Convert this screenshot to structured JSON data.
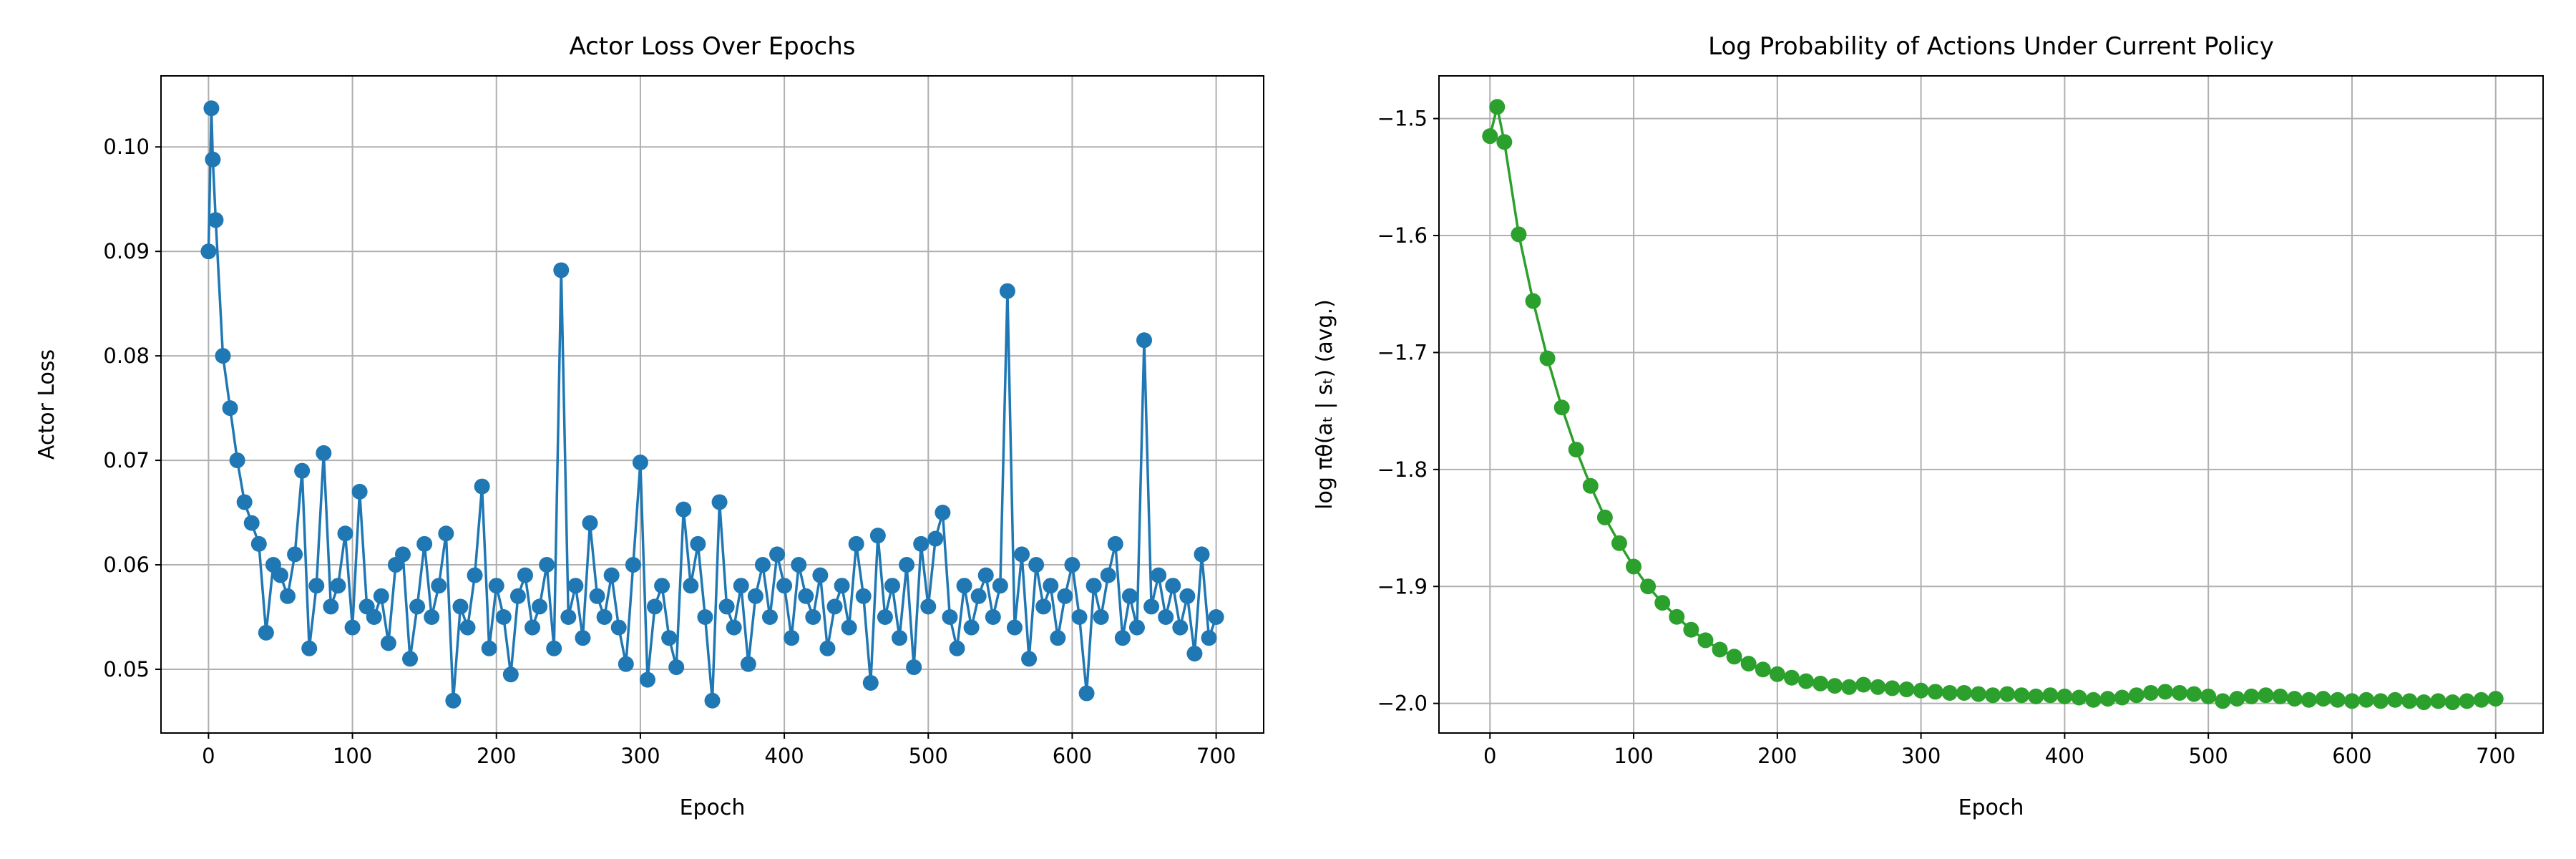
{
  "chart_data": [
    {
      "type": "line",
      "title": "Actor Loss Over Epochs",
      "xlabel": "Epoch",
      "ylabel": "Actor Loss",
      "color": "#1f77b4",
      "marker": true,
      "grid": true,
      "xlim": [
        -33,
        733
      ],
      "ylim": [
        0.0439,
        0.1068
      ],
      "xticks": [
        0,
        100,
        200,
        300,
        400,
        500,
        600,
        700
      ],
      "yticks": [
        0.05,
        0.06,
        0.07,
        0.08,
        0.09,
        {
          "value": 0.1,
          "label": "0.10"
        }
      ],
      "x": [
        0,
        2,
        3,
        5,
        10,
        15,
        20,
        25,
        30,
        35,
        40,
        45,
        50,
        55,
        60,
        65,
        70,
        75,
        80,
        85,
        90,
        95,
        100,
        105,
        110,
        115,
        120,
        125,
        130,
        135,
        140,
        145,
        150,
        155,
        160,
        165,
        170,
        175,
        180,
        185,
        190,
        195,
        200,
        205,
        210,
        215,
        220,
        225,
        230,
        235,
        240,
        245,
        250,
        255,
        260,
        265,
        270,
        275,
        280,
        285,
        290,
        295,
        300,
        305,
        310,
        315,
        320,
        325,
        330,
        335,
        340,
        345,
        350,
        355,
        360,
        365,
        370,
        375,
        380,
        385,
        390,
        395,
        400,
        405,
        410,
        415,
        420,
        425,
        430,
        435,
        440,
        445,
        450,
        455,
        460,
        465,
        470,
        475,
        480,
        485,
        490,
        495,
        500,
        505,
        510,
        515,
        520,
        525,
        530,
        535,
        540,
        545,
        550,
        555,
        560,
        565,
        570,
        575,
        580,
        585,
        590,
        595,
        600,
        605,
        610,
        615,
        620,
        625,
        630,
        635,
        640,
        645,
        650,
        655,
        660,
        665,
        670,
        675,
        680,
        685,
        690,
        695,
        700
      ],
      "values": [
        0.09,
        0.1037,
        0.0988,
        0.093,
        0.08,
        0.075,
        0.07,
        0.066,
        0.064,
        0.062,
        0.0535,
        0.06,
        0.059,
        0.057,
        0.061,
        0.069,
        0.052,
        0.058,
        0.0707,
        0.056,
        0.058,
        0.063,
        0.054,
        0.067,
        0.056,
        0.055,
        0.057,
        0.0525,
        0.06,
        0.061,
        0.051,
        0.056,
        0.062,
        0.055,
        0.058,
        0.063,
        0.047,
        0.056,
        0.054,
        0.059,
        0.0675,
        0.052,
        0.058,
        0.055,
        0.0495,
        0.057,
        0.059,
        0.054,
        0.056,
        0.06,
        0.052,
        0.0882,
        0.055,
        0.058,
        0.053,
        0.064,
        0.057,
        0.055,
        0.059,
        0.054,
        0.0505,
        0.06,
        0.0698,
        0.049,
        0.056,
        0.058,
        0.053,
        0.0502,
        0.0653,
        0.058,
        0.062,
        0.055,
        0.047,
        0.066,
        0.056,
        0.054,
        0.058,
        0.0505,
        0.057,
        0.06,
        0.055,
        0.061,
        0.058,
        0.053,
        0.06,
        0.057,
        0.055,
        0.059,
        0.052,
        0.056,
        0.058,
        0.054,
        0.062,
        0.057,
        0.0487,
        0.0628,
        0.055,
        0.058,
        0.053,
        0.06,
        0.0502,
        0.062,
        0.056,
        0.0625,
        0.065,
        0.055,
        0.052,
        0.058,
        0.054,
        0.057,
        0.059,
        0.055,
        0.058,
        0.0862,
        0.054,
        0.061,
        0.051,
        0.06,
        0.056,
        0.058,
        0.053,
        0.057,
        0.06,
        0.055,
        0.0477,
        0.058,
        0.055,
        0.059,
        0.062,
        0.053,
        0.057,
        0.054,
        0.0815,
        0.056,
        0.059,
        0.055,
        0.058,
        0.054,
        0.057,
        0.0515,
        0.061,
        0.053,
        0.055
      ]
    },
    {
      "type": "line",
      "title": "Log Probability of Actions Under Current Policy",
      "xlabel": "Epoch",
      "ylabel": "log πθ(aₜ | sₜ) (avg.)",
      "color": "#2ca02c",
      "marker": true,
      "grid": true,
      "xlim": [
        -35.5,
        733
      ],
      "ylim": [
        -2.0253,
        -1.4635
      ],
      "xticks": [
        0,
        100,
        200,
        300,
        400,
        500,
        600,
        700
      ],
      "yticks": [
        {
          "value": -2.0,
          "label": "−2.0"
        },
        {
          "value": -1.9,
          "label": "−1.9"
        },
        {
          "value": -1.8,
          "label": "−1.8"
        },
        {
          "value": -1.7,
          "label": "−1.7"
        },
        {
          "value": -1.6,
          "label": "−1.6"
        },
        {
          "value": -1.5,
          "label": "−1.5"
        }
      ],
      "x": [
        0,
        5,
        10,
        20,
        30,
        40,
        50,
        60,
        70,
        80,
        90,
        100,
        110,
        120,
        130,
        140,
        150,
        160,
        170,
        180,
        190,
        200,
        210,
        220,
        230,
        240,
        250,
        260,
        270,
        280,
        290,
        300,
        310,
        320,
        330,
        340,
        350,
        360,
        370,
        380,
        390,
        400,
        410,
        420,
        430,
        440,
        450,
        460,
        470,
        480,
        490,
        500,
        510,
        520,
        530,
        540,
        550,
        560,
        570,
        580,
        590,
        600,
        610,
        620,
        630,
        640,
        650,
        660,
        670,
        680,
        690,
        700
      ],
      "values": [
        -1.515,
        -1.49,
        -1.52,
        -1.599,
        -1.656,
        -1.705,
        -1.747,
        -1.783,
        -1.814,
        -1.841,
        -1.863,
        -1.883,
        -1.9,
        -1.914,
        -1.926,
        -1.937,
        -1.946,
        -1.954,
        -1.96,
        -1.966,
        -1.971,
        -1.975,
        -1.978,
        -1.981,
        -1.983,
        -1.985,
        -1.986,
        -1.984,
        -1.986,
        -1.987,
        -1.988,
        -1.989,
        -1.99,
        -1.991,
        -1.991,
        -1.992,
        -1.993,
        -1.992,
        -1.993,
        -1.994,
        -1.993,
        -1.994,
        -1.995,
        -1.997,
        -1.996,
        -1.995,
        -1.993,
        -1.991,
        -1.99,
        -1.991,
        -1.992,
        -1.994,
        -1.998,
        -1.996,
        -1.994,
        -1.993,
        -1.994,
        -1.996,
        -1.997,
        -1.996,
        -1.997,
        -1.998,
        -1.997,
        -1.998,
        -1.997,
        -1.998,
        -1.999,
        -1.998,
        -1.999,
        -1.998,
        -1.997,
        -1.996
      ]
    }
  ]
}
